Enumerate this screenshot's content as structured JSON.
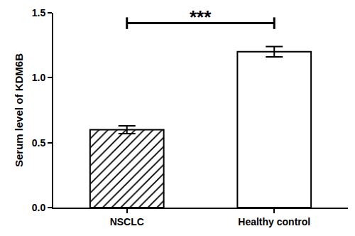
{
  "chart_data": {
    "type": "bar",
    "y_label": "Serum level of KDM6B",
    "categories": [
      "NSCLC",
      "Healthy control"
    ],
    "values": [
      0.6,
      1.2
    ],
    "errors": [
      0.03,
      0.04
    ],
    "color": "#ffffff",
    "ylim": [
      0,
      1.5
    ],
    "yticks": [
      {
        "value": 0,
        "label": "0.0"
      },
      0.5,
      {
        "value": 1,
        "label": "1.0"
      },
      1.5
    ],
    "grid": false,
    "annotations": [
      {
        "text": "***",
        "from": "NSCLC",
        "to": "Healthy control",
        "y": 1.42
      }
    ]
  }
}
